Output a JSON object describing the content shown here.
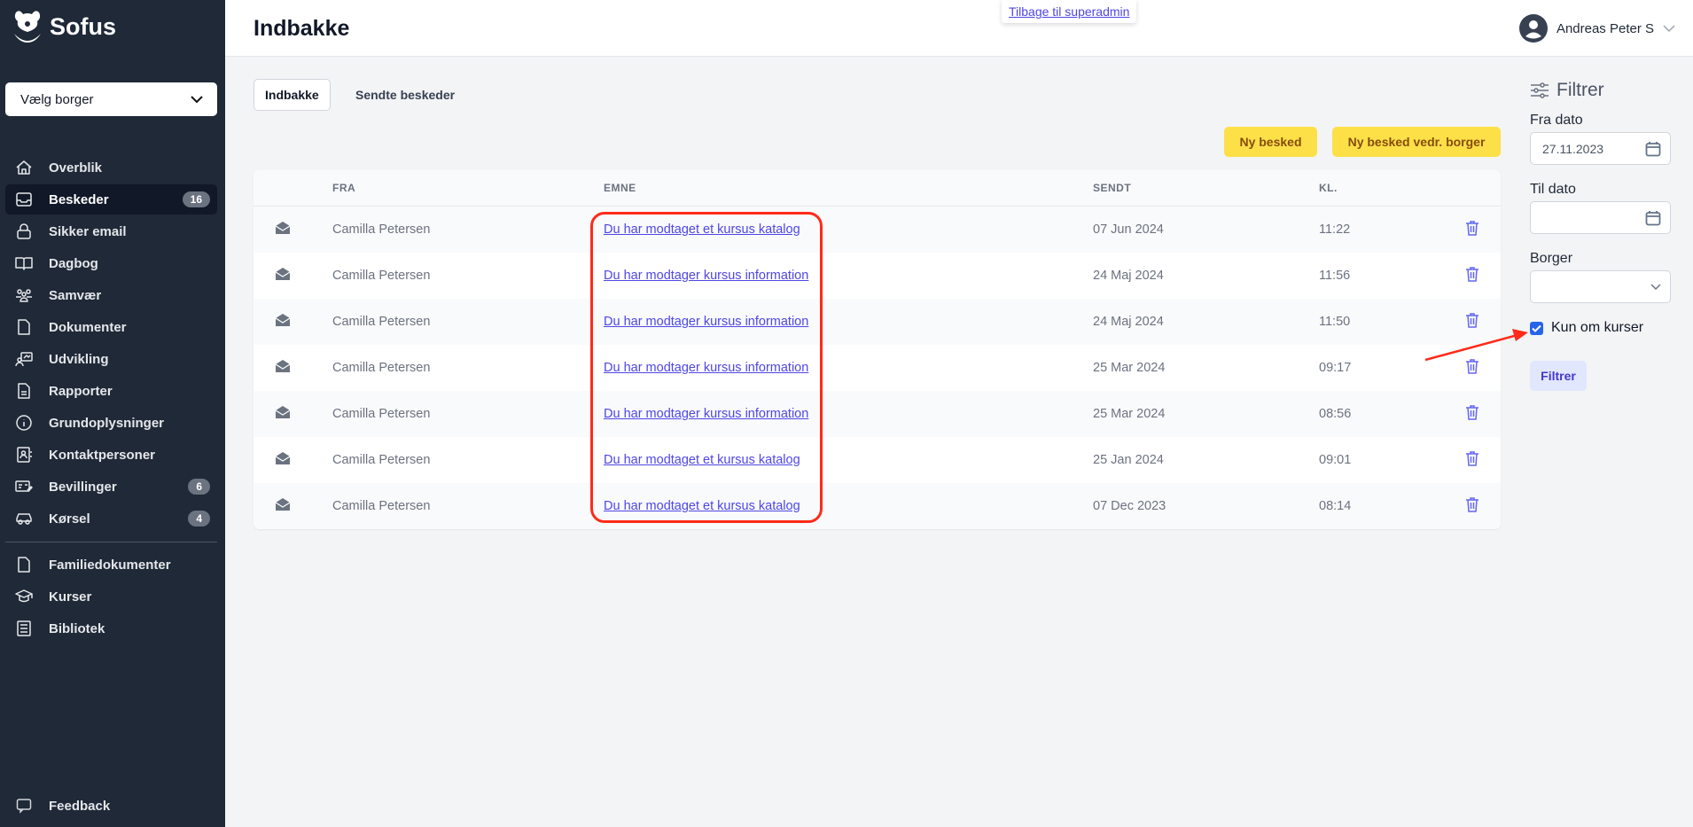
{
  "app": {
    "name": "Sofus"
  },
  "sidebar": {
    "citizen_select": "Vælg borger",
    "items": [
      {
        "label": "Overblik",
        "icon": "home-icon"
      },
      {
        "label": "Beskeder",
        "icon": "inbox-icon",
        "badge": "16",
        "active": true
      },
      {
        "label": "Sikker email",
        "icon": "lock-icon"
      },
      {
        "label": "Dagbog",
        "icon": "book-icon"
      },
      {
        "label": "Samvær",
        "icon": "users-icon"
      },
      {
        "label": "Dokumenter",
        "icon": "document-icon"
      },
      {
        "label": "Udvikling",
        "icon": "development-icon"
      },
      {
        "label": "Rapporter",
        "icon": "report-icon"
      },
      {
        "label": "Grundoplysninger",
        "icon": "info-icon"
      },
      {
        "label": "Kontaktpersoner",
        "icon": "contact-icon"
      },
      {
        "label": "Bevillinger",
        "icon": "grant-icon",
        "badge": "6"
      },
      {
        "label": "Kørsel",
        "icon": "car-icon",
        "badge": "4"
      }
    ],
    "secondary": [
      {
        "label": "Familiedokumenter",
        "icon": "document-icon"
      },
      {
        "label": "Kurser",
        "icon": "graduation-cap-icon"
      },
      {
        "label": "Bibliotek",
        "icon": "library-icon"
      }
    ],
    "feedback": "Feedback"
  },
  "header": {
    "title": "Indbakke",
    "back_link": "Tilbage til superadmin",
    "user": "Andreas Peter S"
  },
  "tabs": [
    {
      "label": "Indbakke",
      "active": true
    },
    {
      "label": "Sendte beskeder"
    }
  ],
  "actions": {
    "new_message": "Ny besked",
    "new_message_citizen": "Ny besked vedr. borger"
  },
  "table": {
    "columns": [
      "FRA",
      "EMNE",
      "SENDT",
      "KL."
    ],
    "rows": [
      {
        "from": "Camilla Petersen",
        "subject": "Du har modtaget et kursus katalog",
        "sent": "07 Jun 2024",
        "time": "11:22"
      },
      {
        "from": "Camilla Petersen",
        "subject": "Du har modtager kursus information",
        "sent": "24 Maj 2024",
        "time": "11:56"
      },
      {
        "from": "Camilla Petersen",
        "subject": "Du har modtager kursus information",
        "sent": "24 Maj 2024",
        "time": "11:50"
      },
      {
        "from": "Camilla Petersen",
        "subject": "Du har modtager kursus information",
        "sent": "25 Mar 2024",
        "time": "09:17"
      },
      {
        "from": "Camilla Petersen",
        "subject": "Du har modtager kursus information",
        "sent": "25 Mar 2024",
        "time": "08:56"
      },
      {
        "from": "Camilla Petersen",
        "subject": "Du har modtaget et kursus katalog",
        "sent": "25 Jan 2024",
        "time": "09:01"
      },
      {
        "from": "Camilla Petersen",
        "subject": "Du har modtaget et kursus katalog",
        "sent": "07 Dec 2023",
        "time": "08:14"
      }
    ]
  },
  "filter": {
    "title": "Filtrer",
    "from_label": "Fra dato",
    "from_value": "27.11.2023",
    "to_label": "Til dato",
    "to_value": "",
    "citizen_label": "Borger",
    "citizen_value": "",
    "only_courses_label": "Kun om kurser",
    "only_courses_checked": true,
    "button": "Filtrer"
  },
  "colors": {
    "sidebar": "#1f2937",
    "accent": "#4f46e5",
    "yellow_button": "#fde047",
    "annotation": "#ff2a1a"
  }
}
